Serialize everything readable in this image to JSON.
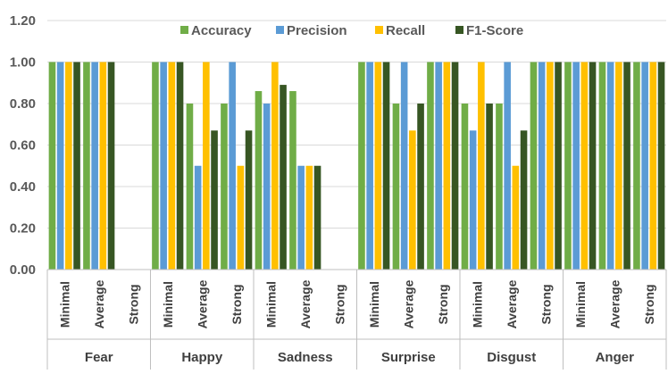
{
  "chart_data": {
    "type": "bar",
    "title": "",
    "xlabel": "",
    "ylabel": "",
    "ylim": [
      0,
      1.2
    ],
    "yticks": [
      "0.00",
      "0.20",
      "0.40",
      "0.60",
      "0.80",
      "1.00",
      "1.20"
    ],
    "grid": "horizontal",
    "legend_position": "top",
    "groups": [
      "Fear",
      "Happy",
      "Sadness",
      "Surprise",
      "Disgust",
      "Anger"
    ],
    "levels": [
      "Minimal",
      "Average",
      "Strong"
    ],
    "series": [
      {
        "name": "Accuracy",
        "color": "#70AD47",
        "values": [
          1,
          1,
          null,
          1,
          0.8,
          0.8,
          0.86,
          0.86,
          null,
          1,
          0.8,
          1,
          0.8,
          0.8,
          1,
          1,
          1,
          1
        ]
      },
      {
        "name": "Precision",
        "color": "#5B9BD5",
        "values": [
          1,
          1,
          null,
          1,
          0.5,
          1,
          0.8,
          0.5,
          null,
          1,
          1,
          1,
          0.67,
          1,
          1,
          1,
          1,
          1
        ]
      },
      {
        "name": "Recall",
        "color": "#FFC000",
        "values": [
          1,
          1,
          null,
          1,
          1,
          0.5,
          1,
          0.5,
          null,
          1,
          0.67,
          1,
          1,
          0.5,
          1,
          1,
          1,
          1
        ]
      },
      {
        "name": "F1-Score",
        "color": "#375623",
        "values": [
          1,
          1,
          null,
          1,
          0.67,
          0.67,
          0.89,
          0.5,
          null,
          1,
          0.8,
          1,
          0.8,
          0.67,
          1,
          1,
          1,
          1
        ]
      }
    ]
  }
}
